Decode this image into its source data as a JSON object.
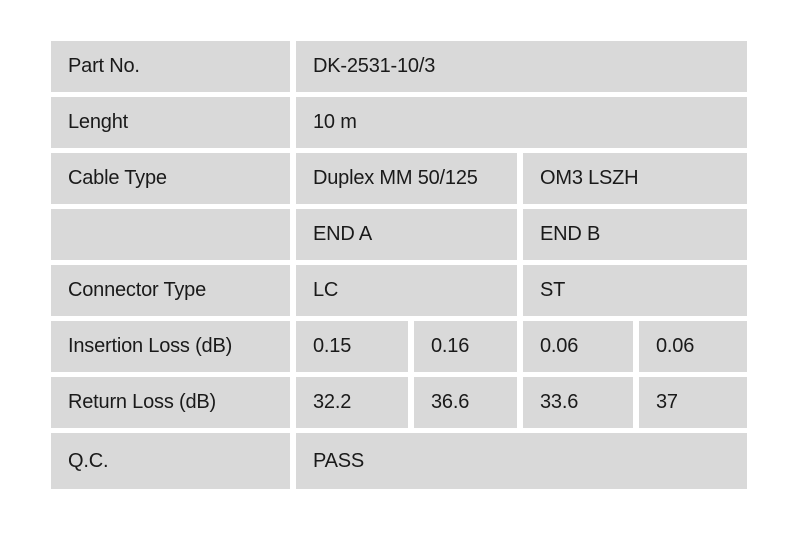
{
  "colors": {
    "page_background": "#ffffff",
    "cell_background": "#d9d9d9",
    "text": "#1a1a1a"
  },
  "table": {
    "column_group_headers": [
      "END A",
      "END B"
    ],
    "rows": [
      {
        "label": "Part No.",
        "cells": [
          {
            "text": "DK-2531-10/3",
            "span": 4
          }
        ]
      },
      {
        "label": "Lenght",
        "cells": [
          {
            "text": "10 m",
            "span": 4
          }
        ]
      },
      {
        "label": "Cable Type",
        "cells": [
          {
            "text": "Duplex MM 50/125",
            "span": 2
          },
          {
            "text": "OM3 LSZH",
            "span": 2
          }
        ]
      },
      {
        "label": "",
        "cells": [
          {
            "text": "END A",
            "span": 2
          },
          {
            "text": "END B",
            "span": 2
          }
        ]
      },
      {
        "label": "Connector Type",
        "cells": [
          {
            "text": "LC",
            "span": 2
          },
          {
            "text": "ST",
            "span": 2
          }
        ]
      },
      {
        "label": "Insertion Loss (dB)",
        "cells": [
          {
            "text": "0.15",
            "span": 1
          },
          {
            "text": "0.16",
            "span": 1
          },
          {
            "text": "0.06",
            "span": 1
          },
          {
            "text": "0.06",
            "span": 1
          }
        ]
      },
      {
        "label": "Return Loss (dB)",
        "cells": [
          {
            "text": "32.2",
            "span": 1
          },
          {
            "text": "36.6",
            "span": 1
          },
          {
            "text": "33.6",
            "span": 1
          },
          {
            "text": "37",
            "span": 1
          }
        ]
      },
      {
        "label": "Q.C.",
        "cells": [
          {
            "text": "PASS",
            "span": 4
          }
        ]
      }
    ]
  }
}
